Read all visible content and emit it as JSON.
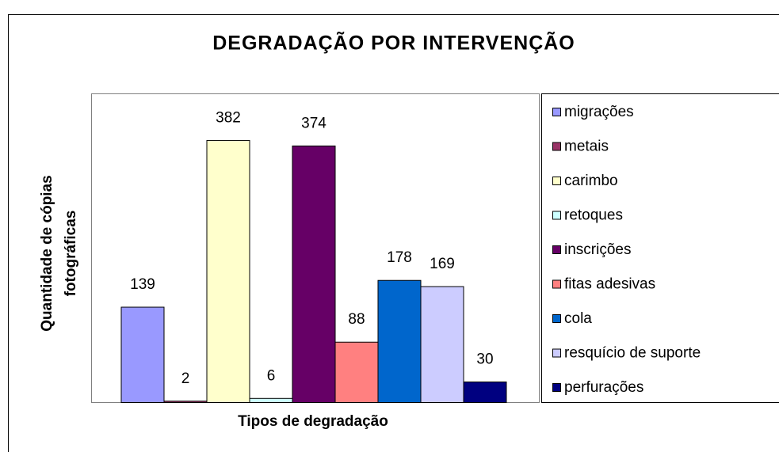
{
  "chart_data": {
    "type": "bar",
    "title": "DEGRADAÇÃO POR INTERVENÇÃO",
    "xlabel": "Tipos de degradação",
    "ylabel": [
      "Quantidade de cópias",
      "fotográficas"
    ],
    "ylim": [
      0,
      450
    ],
    "legend": "right",
    "series": [
      {
        "name": "migrações",
        "color": "#9999ff",
        "values": [
          139
        ]
      },
      {
        "name": "metais",
        "color": "#993366",
        "values": [
          2
        ]
      },
      {
        "name": "carimbo",
        "color": "#ffffcc",
        "values": [
          382
        ]
      },
      {
        "name": "retoques",
        "color": "#ccffff",
        "values": [
          6
        ]
      },
      {
        "name": "inscrições",
        "color": "#660066",
        "values": [
          374
        ]
      },
      {
        "name": "fitas adesivas",
        "color": "#ff8080",
        "values": [
          88
        ]
      },
      {
        "name": "cola",
        "color": "#0066cc",
        "values": [
          178
        ]
      },
      {
        "name": "resquício de suporte",
        "color": "#ccccff",
        "values": [
          169
        ]
      },
      {
        "name": "perfurações",
        "color": "#000080",
        "values": [
          30
        ]
      }
    ]
  }
}
